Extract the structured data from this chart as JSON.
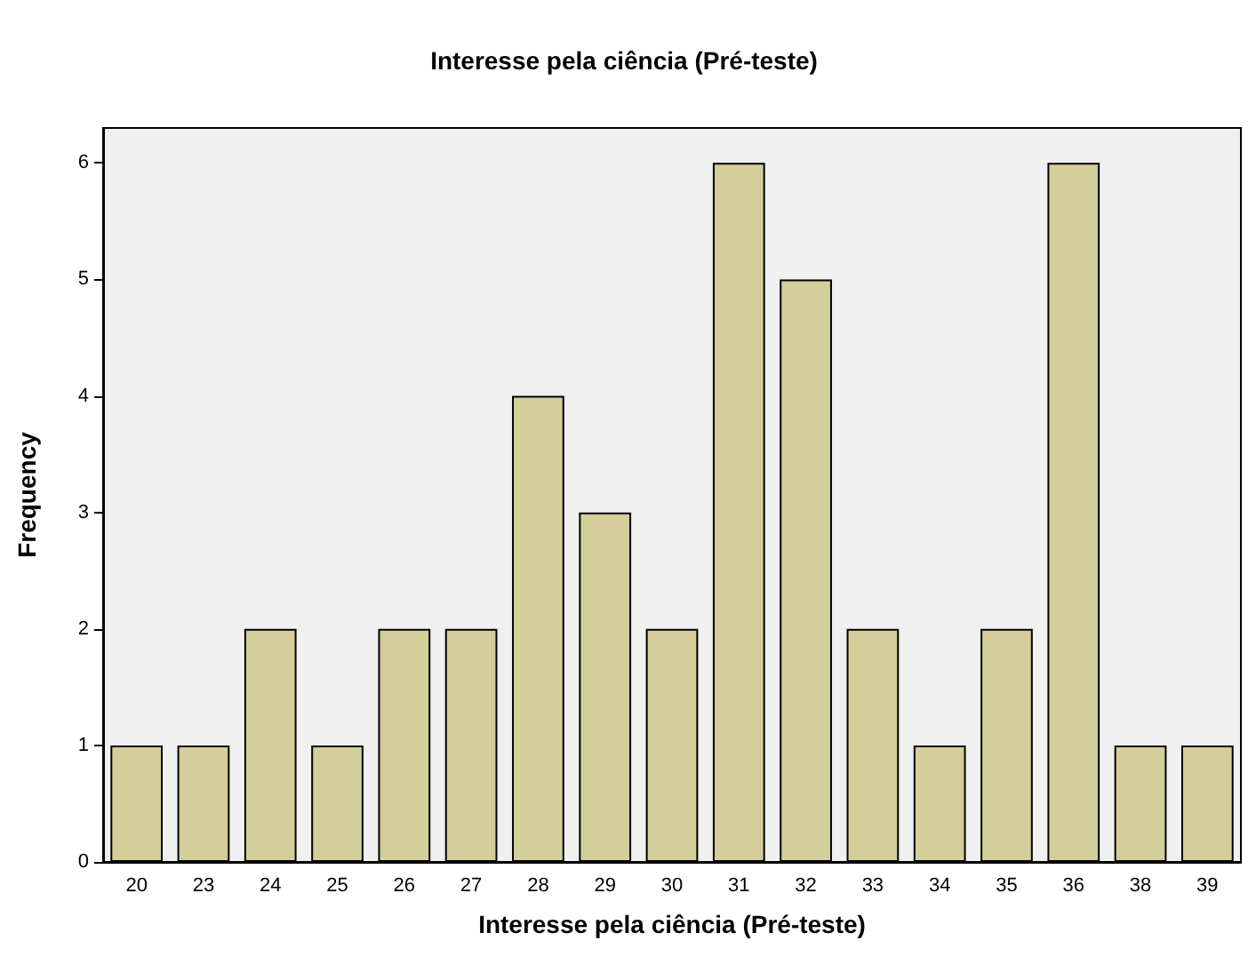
{
  "chart_data": {
    "type": "bar",
    "title": "Interesse pela ciência (Pré-teste)",
    "xlabel": "Interesse pela ciência (Pré-teste)",
    "ylabel": "Frequency",
    "categories": [
      "20",
      "23",
      "24",
      "25",
      "26",
      "27",
      "28",
      "29",
      "30",
      "31",
      "32",
      "33",
      "34",
      "35",
      "36",
      "38",
      "39"
    ],
    "values": [
      1,
      1,
      2,
      1,
      2,
      2,
      4,
      3,
      2,
      6,
      5,
      2,
      1,
      2,
      6,
      1,
      1
    ],
    "color": "#d3ce9a",
    "ylim": [
      0,
      6.3
    ],
    "yticks": [
      0,
      1,
      2,
      3,
      4,
      5,
      6
    ],
    "grid": false
  }
}
